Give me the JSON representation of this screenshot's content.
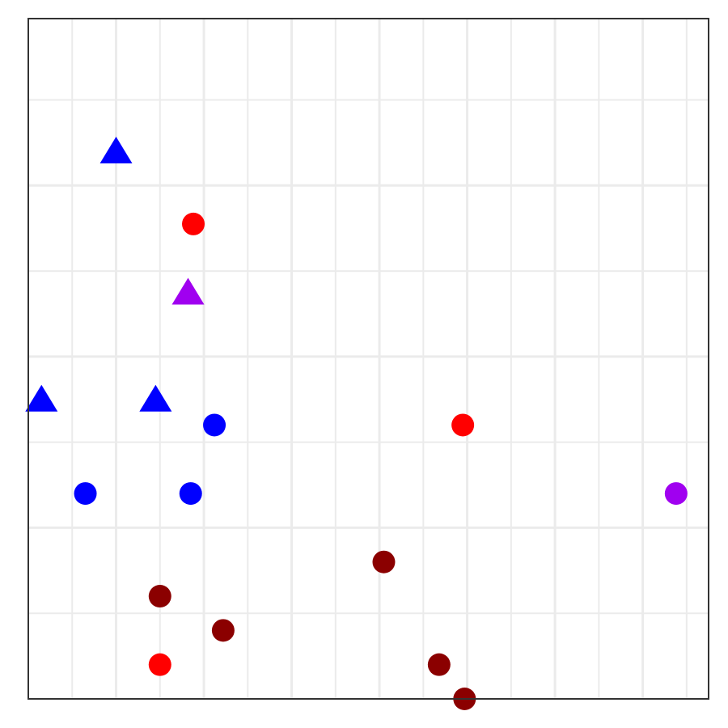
{
  "chart_data": {
    "type": "scatter",
    "title": "",
    "xlabel": "",
    "ylabel": "",
    "xlim": [
      0,
      7.75
    ],
    "ylim": [
      0,
      7.95
    ],
    "grid": true,
    "legend": "none",
    "colors": {
      "blue": "#0000FF",
      "red": "#FF0000",
      "purple": "#A000F0",
      "darkred": "#8B0000",
      "grid": "#EBEBEB",
      "border": "#333333"
    },
    "points": [
      {
        "x": 1.0,
        "y": 6.4,
        "shape": "triangle",
        "color": "blue"
      },
      {
        "x": 1.88,
        "y": 5.55,
        "shape": "circle",
        "color": "red"
      },
      {
        "x": 1.82,
        "y": 4.75,
        "shape": "triangle",
        "color": "purple"
      },
      {
        "x": 0.15,
        "y": 3.5,
        "shape": "triangle",
        "color": "blue"
      },
      {
        "x": 1.45,
        "y": 3.5,
        "shape": "triangle",
        "color": "blue"
      },
      {
        "x": 2.12,
        "y": 3.2,
        "shape": "circle",
        "color": "blue"
      },
      {
        "x": 4.95,
        "y": 3.2,
        "shape": "circle",
        "color": "red"
      },
      {
        "x": 0.65,
        "y": 2.4,
        "shape": "circle",
        "color": "blue"
      },
      {
        "x": 1.85,
        "y": 2.4,
        "shape": "circle",
        "color": "blue"
      },
      {
        "x": 7.38,
        "y": 2.4,
        "shape": "circle",
        "color": "purple"
      },
      {
        "x": 4.05,
        "y": 1.6,
        "shape": "circle",
        "color": "darkred"
      },
      {
        "x": 1.5,
        "y": 1.2,
        "shape": "circle",
        "color": "darkred"
      },
      {
        "x": 2.22,
        "y": 0.8,
        "shape": "circle",
        "color": "darkred"
      },
      {
        "x": 1.5,
        "y": 0.4,
        "shape": "circle",
        "color": "red"
      },
      {
        "x": 4.68,
        "y": 0.4,
        "shape": "circle",
        "color": "darkred"
      },
      {
        "x": 4.97,
        "y": 0.0,
        "shape": "circle",
        "color": "darkred"
      }
    ]
  }
}
